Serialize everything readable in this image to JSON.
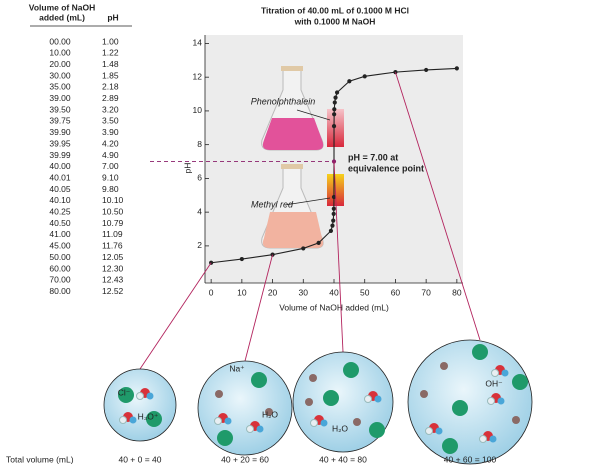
{
  "table": {
    "headers": [
      [
        "Volume of NaOH",
        "added (mL)"
      ],
      "pH"
    ],
    "rows": [
      [
        "00.00",
        "1.00"
      ],
      [
        "10.00",
        "1.22"
      ],
      [
        "20.00",
        "1.48"
      ],
      [
        "30.00",
        "1.85"
      ],
      [
        "35.00",
        "2.18"
      ],
      [
        "39.00",
        "2.89"
      ],
      [
        "39.50",
        "3.20"
      ],
      [
        "39.75",
        "3.50"
      ],
      [
        "39.90",
        "3.90"
      ],
      [
        "39.95",
        "4.20"
      ],
      [
        "39.99",
        "4.90"
      ],
      [
        "40.00",
        "7.00"
      ],
      [
        "40.01",
        "9.10"
      ],
      [
        "40.05",
        "9.80"
      ],
      [
        "40.10",
        "10.10"
      ],
      [
        "40.25",
        "10.50"
      ],
      [
        "40.50",
        "10.79"
      ],
      [
        "41.00",
        "11.09"
      ],
      [
        "45.00",
        "11.76"
      ],
      [
        "50.00",
        "12.05"
      ],
      [
        "60.00",
        "12.30"
      ],
      [
        "70.00",
        "12.43"
      ],
      [
        "80.00",
        "12.52"
      ]
    ],
    "highlight_row": 11,
    "highlight_color": "#c0143c"
  },
  "chart_data": {
    "type": "line",
    "title": "Titration of 40.00 mL of 0.1000 M HCl",
    "subtitle": "with 0.1000 M NaOH",
    "x_label": "Volume of NaOH added (mL)",
    "y_label": "pH",
    "x": [
      0,
      10,
      20,
      30,
      35,
      39,
      39.5,
      39.75,
      39.9,
      39.95,
      39.99,
      40,
      40.01,
      40.05,
      40.1,
      40.25,
      40.5,
      41,
      45,
      50,
      60,
      70,
      80
    ],
    "values": [
      1.0,
      1.22,
      1.48,
      1.85,
      2.18,
      2.89,
      3.2,
      3.5,
      3.9,
      4.2,
      4.9,
      7.0,
      9.1,
      9.8,
      10.1,
      10.5,
      10.79,
      11.09,
      11.76,
      12.05,
      12.3,
      12.43,
      12.52
    ],
    "color": "#222222",
    "xlim": [
      -2,
      82
    ],
    "xticks": [
      0,
      10,
      20,
      30,
      40,
      50,
      60,
      70,
      80
    ],
    "ylim": [
      -0.2,
      14.5
    ],
    "yticks": [
      2,
      4,
      6,
      8,
      10,
      12,
      14
    ],
    "annotations": [
      "Phenolphthalein",
      "Methyl red",
      "pH = 7.00 at",
      "equivalence point"
    ]
  },
  "illustrations": {
    "row_label": "Total volume (mL)",
    "captions": [
      "40 + 0 = 40",
      "40 + 20 = 60",
      "40 + 40 = 80",
      "40 + 60 = 100"
    ],
    "labels": [
      "Cl⁻",
      "H₃O⁺",
      "Na⁺",
      "H₂O",
      "H₂O",
      "OH⁻"
    ]
  }
}
